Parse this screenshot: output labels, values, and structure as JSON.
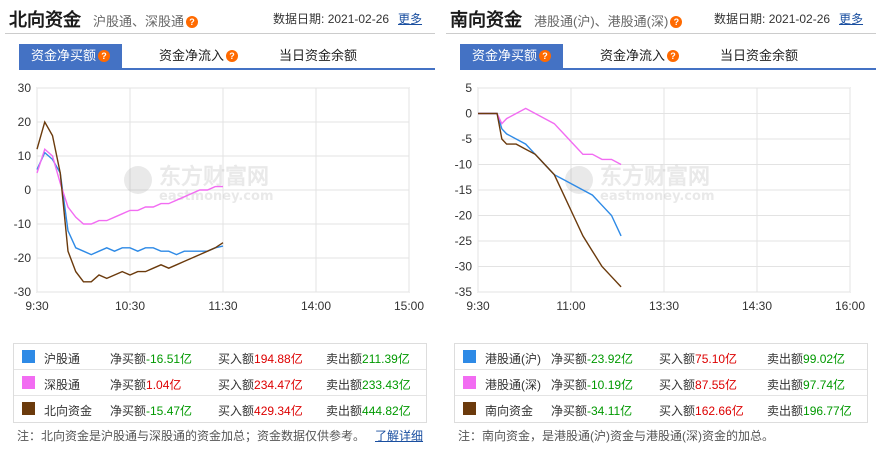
{
  "left": {
    "title": "北向资金",
    "subtitle": "沪股通、深股通",
    "date_label": "数据日期:",
    "date": "2021-02-26",
    "more": "更多",
    "tabs": [
      "资金净买额",
      "资金净流入",
      "当日资金余额"
    ],
    "watermark_cn": "东方财富网",
    "watermark_en": "eastmoney.com",
    "legend": [
      {
        "name": "沪股通",
        "color": "#2e8ae6",
        "net_label": "净买额",
        "net": "-16.51亿",
        "buy_label": "买入额",
        "buy": "194.88亿",
        "sell_label": "卖出额",
        "sell": "211.39亿"
      },
      {
        "name": "深股通",
        "color": "#f26cf2",
        "net_label": "净买额",
        "net": "1.04亿",
        "buy_label": "买入额",
        "buy": "234.47亿",
        "sell_label": "卖出额",
        "sell": "233.43亿"
      },
      {
        "name": "北向资金",
        "color": "#6b3a0c",
        "net_label": "净买额",
        "net": "-15.47亿",
        "buy_label": "买入额",
        "buy": "429.34亿",
        "sell_label": "卖出额",
        "sell": "444.82亿"
      }
    ],
    "note": "注：北向资金是沪股通与深股通的资金加总；资金数据仅供参考。",
    "note_link": "了解详细"
  },
  "right": {
    "title": "南向资金",
    "subtitle": "港股通(沪)、港股通(深)",
    "date_label": "数据日期:",
    "date": "2021-02-26",
    "more": "更多",
    "tabs": [
      "资金净买额",
      "资金净流入",
      "当日资金余额"
    ],
    "watermark_cn": "东方财富网",
    "watermark_en": "eastmoney.com",
    "legend": [
      {
        "name": "港股通(沪)",
        "color": "#2e8ae6",
        "net_label": "净买额",
        "net": "-23.92亿",
        "buy_label": "买入额",
        "buy": "75.10亿",
        "sell_label": "卖出额",
        "sell": "99.02亿"
      },
      {
        "name": "港股通(深)",
        "color": "#f26cf2",
        "net_label": "净买额",
        "net": "-10.19亿",
        "buy_label": "买入额",
        "buy": "87.55亿",
        "sell_label": "卖出额",
        "sell": "97.74亿"
      },
      {
        "name": "南向资金",
        "color": "#6b3a0c",
        "net_label": "净买额",
        "net": "-34.11亿",
        "buy_label": "买入额",
        "buy": "162.66亿",
        "sell_label": "卖出额",
        "sell": "196.77亿"
      }
    ],
    "note": "注：南向资金，是港股通(沪)资金与港股通(深)资金的加总。"
  },
  "chart_data": [
    {
      "type": "line",
      "xticks": [
        "9:30",
        "10:30",
        "11:30",
        "14:00",
        "15:00"
      ],
      "ylim": [
        -30,
        30
      ],
      "yticks": [
        30,
        20,
        10,
        0,
        -10,
        -20,
        -30
      ],
      "grid": true,
      "x_minutes": [
        0,
        5,
        10,
        15,
        20,
        25,
        30,
        35,
        40,
        45,
        50,
        55,
        60,
        65,
        70,
        75,
        80,
        85,
        90,
        95,
        100,
        105,
        110,
        115,
        120
      ],
      "series": [
        {
          "name": "沪股通",
          "color": "#2e8ae6",
          "values": [
            6,
            11,
            9,
            5,
            -12,
            -17,
            -18,
            -19,
            -18,
            -17,
            -18,
            -17,
            -17,
            -18,
            -17,
            -17,
            -18,
            -18,
            -19,
            -18,
            -18,
            -18,
            -18,
            -17,
            -16.5
          ]
        },
        {
          "name": "深股通",
          "color": "#f26cf2",
          "values": [
            5,
            12,
            10,
            2,
            -5,
            -8,
            -10,
            -10,
            -9,
            -9,
            -8,
            -7,
            -6,
            -6,
            -5,
            -5,
            -4,
            -4,
            -3,
            -2,
            -1,
            0,
            0,
            1,
            1.0
          ]
        },
        {
          "name": "北向资金",
          "color": "#6b3a0c",
          "values": [
            12,
            20,
            16,
            5,
            -18,
            -24,
            -27,
            -27,
            -25,
            -26,
            -25,
            -24,
            -25,
            -24,
            -24,
            -23,
            -22,
            -23,
            -22,
            -21,
            -20,
            -19,
            -18,
            -17,
            -15.5
          ]
        }
      ]
    },
    {
      "type": "line",
      "xticks": [
        "9:30",
        "11:00",
        "13:30",
        "14:30",
        "16:00"
      ],
      "ylim": [
        -35,
        5
      ],
      "yticks": [
        5,
        0,
        -5,
        -10,
        -15,
        -20,
        -25,
        -30,
        -35
      ],
      "grid": true,
      "x_minutes": [
        0,
        10,
        20,
        25,
        30,
        40,
        50,
        60,
        70,
        80,
        90,
        100,
        110,
        120,
        130,
        140,
        150
      ],
      "series": [
        {
          "name": "港股通(沪)",
          "color": "#2e8ae6",
          "values": [
            0,
            0,
            0,
            -3,
            -4,
            -5,
            -6,
            -8,
            -10,
            -12,
            -13,
            -14,
            -15,
            -16,
            -18,
            -20,
            -24
          ]
        },
        {
          "name": "港股通(深)",
          "color": "#f26cf2",
          "values": [
            0,
            0,
            0,
            -2,
            -1,
            0,
            1,
            0,
            -1,
            -2,
            -4,
            -6,
            -8,
            -8,
            -9,
            -9,
            -10
          ]
        },
        {
          "name": "南向资金",
          "color": "#6b3a0c",
          "values": [
            0,
            0,
            0,
            -5,
            -6,
            -6,
            -7,
            -8,
            -10,
            -12,
            -16,
            -20,
            -24,
            -27,
            -30,
            -32,
            -34
          ]
        }
      ]
    }
  ]
}
